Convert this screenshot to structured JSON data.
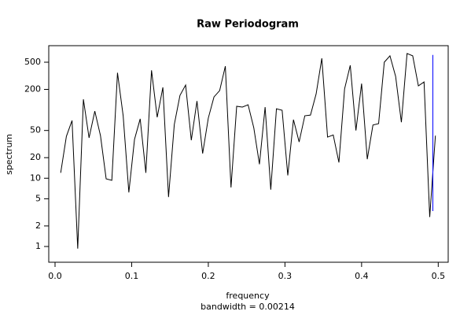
{
  "chart_data": {
    "type": "line",
    "title": "Raw Periodogram",
    "xlabel": "frequency",
    "ylabel": "spectrum",
    "subtitle": "bandwidth = 0.00214",
    "log_y": true,
    "xlim": [
      -0.0082,
      0.513
    ],
    "ylim": [
      0.588,
      873
    ],
    "xticks": [
      {
        "value": 0,
        "label": "0.0"
      },
      0.1,
      0.2,
      0.3,
      0.4,
      0.5
    ],
    "yticks": [
      1,
      2,
      5,
      10,
      20,
      50,
      200,
      500
    ],
    "x": [
      0.0074,
      0.0148,
      0.0222,
      0.0296,
      0.037,
      0.0444,
      0.0519,
      0.0593,
      0.0667,
      0.0741,
      0.0815,
      0.0889,
      0.0963,
      0.1037,
      0.1111,
      0.1185,
      0.1259,
      0.1333,
      0.1407,
      0.1481,
      0.1556,
      0.163,
      0.1704,
      0.1778,
      0.1852,
      0.1926,
      0.2,
      0.2074,
      0.2148,
      0.2222,
      0.2296,
      0.237,
      0.2444,
      0.2519,
      0.2593,
      0.2667,
      0.2741,
      0.2815,
      0.2889,
      0.2963,
      0.3037,
      0.3111,
      0.3185,
      0.3259,
      0.3333,
      0.3407,
      0.3481,
      0.3556,
      0.363,
      0.3704,
      0.3778,
      0.3852,
      0.3926,
      0.4,
      0.4074,
      0.4148,
      0.4222,
      0.4296,
      0.437,
      0.4444,
      0.4519,
      0.4593,
      0.4667,
      0.4741,
      0.4815,
      0.4889,
      0.4963
    ],
    "series": [
      {
        "name": "spectrum",
        "color": "#000000",
        "values": [
          12,
          41,
          70,
          0.93,
          143,
          39,
          96,
          42,
          9.8,
          9.3,
          350,
          82,
          6.2,
          37,
          74,
          12,
          380,
          78,
          214,
          5.3,
          61,
          163,
          231,
          36,
          135,
          23,
          76,
          155,
          192,
          437,
          7.3,
          113,
          110,
          119,
          55,
          16,
          110,
          6.8,
          104,
          99,
          11,
          72,
          34,
          82,
          84,
          172,
          570,
          40,
          43,
          17,
          203,
          450,
          50,
          243,
          19,
          60,
          63,
          500,
          620,
          310,
          66,
          670,
          620,
          225,
          257,
          2.7,
          42
        ]
      }
    ],
    "ci_bar": {
      "x": 0.493,
      "lower": 3.3,
      "upper": 640,
      "color": "#0000ff"
    }
  }
}
